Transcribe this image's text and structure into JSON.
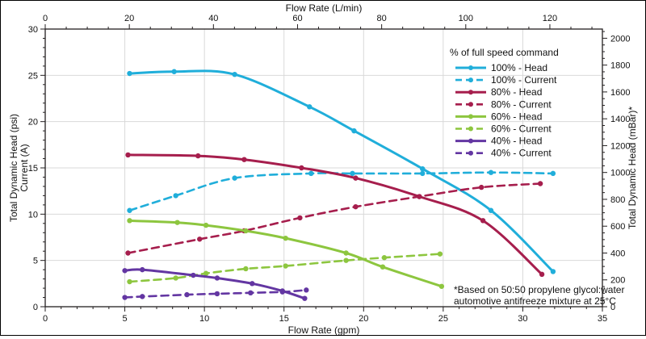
{
  "chart_data": {
    "type": "line",
    "top_axis_title": "Flow Rate (L/min)",
    "bottom_axis_title": "Flow Rate (gpm)",
    "left_axis_title_line1": "Total Dynamic Head (psi)",
    "left_axis_title_line2": "Current (A)",
    "right_axis_title": "Total Dynamic Head (mBar)*",
    "legend_title": "% of full speed command",
    "footnote_line1": "*Based on 50:50 propylene glycol:water",
    "footnote_line2": "automotive antifreeze mixture at 25°C",
    "axes": {
      "bottom": {
        "unit": "gpm",
        "min": 0,
        "max": 35,
        "major_step": 5,
        "minor_step": 1,
        "tick_labels": [
          "0",
          "5",
          "10",
          "15",
          "20",
          "25",
          "30",
          "35"
        ]
      },
      "top": {
        "unit": "L/min",
        "min": 0,
        "max": 130,
        "major_step": 20,
        "minor_step": 5,
        "lmin_per_gpm": 3.78541,
        "tick_labels": [
          "0",
          "20",
          "40",
          "60",
          "80",
          "100",
          "120"
        ]
      },
      "left": {
        "unit": "psi / A",
        "min": 0,
        "max": 30,
        "major_step": 5,
        "minor_step": 1,
        "tick_labels": [
          "0",
          "5",
          "10",
          "15",
          "20",
          "25",
          "30"
        ]
      },
      "right": {
        "unit": "mBar",
        "min": 0,
        "max": 2050,
        "major_step": 200,
        "minor_step": 50,
        "mbar_per_psi": 68.9476,
        "tick_labels": [
          "0",
          "200",
          "400",
          "600",
          "800",
          "1000",
          "1200",
          "1400",
          "1600",
          "1800",
          "2000"
        ]
      }
    },
    "grid": {
      "show": true,
      "x_lines_gpm": [
        5,
        10,
        15,
        20,
        25,
        30
      ],
      "y_lines": [
        5,
        10,
        15,
        20,
        25
      ],
      "color": "#d9d9d9"
    },
    "colors": {
      "speed100": "#20aeda",
      "speed80": "#a61e4d",
      "speed60": "#8dc63f",
      "speed40": "#6336a2",
      "axis": "#231f20",
      "text": "#111111"
    },
    "series": [
      {
        "name": "100% - Head",
        "color": "#20aeda",
        "dashed": false,
        "points": [
          [
            5.3,
            25.2
          ],
          [
            8.1,
            25.4
          ],
          [
            11.9,
            25.1
          ],
          [
            16.6,
            21.6
          ],
          [
            19.4,
            19.0
          ],
          [
            23.7,
            14.9
          ],
          [
            28.0,
            10.4
          ],
          [
            31.9,
            3.8
          ]
        ]
      },
      {
        "name": "100% - Current",
        "color": "#20aeda",
        "dashed": true,
        "points": [
          [
            5.3,
            10.4
          ],
          [
            8.2,
            12.0
          ],
          [
            11.9,
            13.9
          ],
          [
            16.7,
            14.4
          ],
          [
            19.3,
            14.4
          ],
          [
            23.7,
            14.4
          ],
          [
            28.0,
            14.5
          ],
          [
            31.9,
            14.4
          ]
        ]
      },
      {
        "name": "80% - Head",
        "color": "#a61e4d",
        "dashed": false,
        "points": [
          [
            5.2,
            16.4
          ],
          [
            9.6,
            16.3
          ],
          [
            12.5,
            15.9
          ],
          [
            16.1,
            15.0
          ],
          [
            19.5,
            13.9
          ],
          [
            23.5,
            11.9
          ],
          [
            27.5,
            9.3
          ],
          [
            31.2,
            3.5
          ]
        ]
      },
      {
        "name": "80% - Current",
        "color": "#a61e4d",
        "dashed": true,
        "points": [
          [
            5.2,
            5.8
          ],
          [
            9.7,
            7.3
          ],
          [
            12.5,
            8.2
          ],
          [
            16.0,
            9.6
          ],
          [
            19.5,
            10.8
          ],
          [
            23.5,
            11.9
          ],
          [
            27.4,
            12.9
          ],
          [
            31.1,
            13.3
          ]
        ]
      },
      {
        "name": "60% - Head",
        "color": "#8dc63f",
        "dashed": false,
        "points": [
          [
            5.3,
            9.3
          ],
          [
            8.3,
            9.1
          ],
          [
            10.1,
            8.8
          ],
          [
            12.6,
            8.2
          ],
          [
            15.1,
            7.4
          ],
          [
            18.9,
            5.8
          ],
          [
            21.2,
            4.3
          ],
          [
            24.9,
            2.2
          ]
        ]
      },
      {
        "name": "60% - Current",
        "color": "#8dc63f",
        "dashed": true,
        "points": [
          [
            5.3,
            2.7
          ],
          [
            8.2,
            3.1
          ],
          [
            10.1,
            3.6
          ],
          [
            12.6,
            4.1
          ],
          [
            15.1,
            4.4
          ],
          [
            18.9,
            5.0
          ],
          [
            21.3,
            5.3
          ],
          [
            24.8,
            5.7
          ]
        ]
      },
      {
        "name": "40% - Head",
        "color": "#6336a2",
        "dashed": false,
        "points": [
          [
            5.0,
            3.9
          ],
          [
            6.1,
            4.0
          ],
          [
            9.3,
            3.4
          ],
          [
            10.8,
            3.1
          ],
          [
            13.0,
            2.5
          ],
          [
            14.9,
            1.7
          ],
          [
            16.3,
            0.9
          ]
        ]
      },
      {
        "name": "40% - Current",
        "color": "#6336a2",
        "dashed": true,
        "points": [
          [
            5.0,
            1.0
          ],
          [
            6.1,
            1.1
          ],
          [
            8.9,
            1.3
          ],
          [
            10.8,
            1.4
          ],
          [
            12.9,
            1.5
          ],
          [
            14.9,
            1.6
          ],
          [
            16.4,
            1.8
          ]
        ]
      }
    ]
  }
}
